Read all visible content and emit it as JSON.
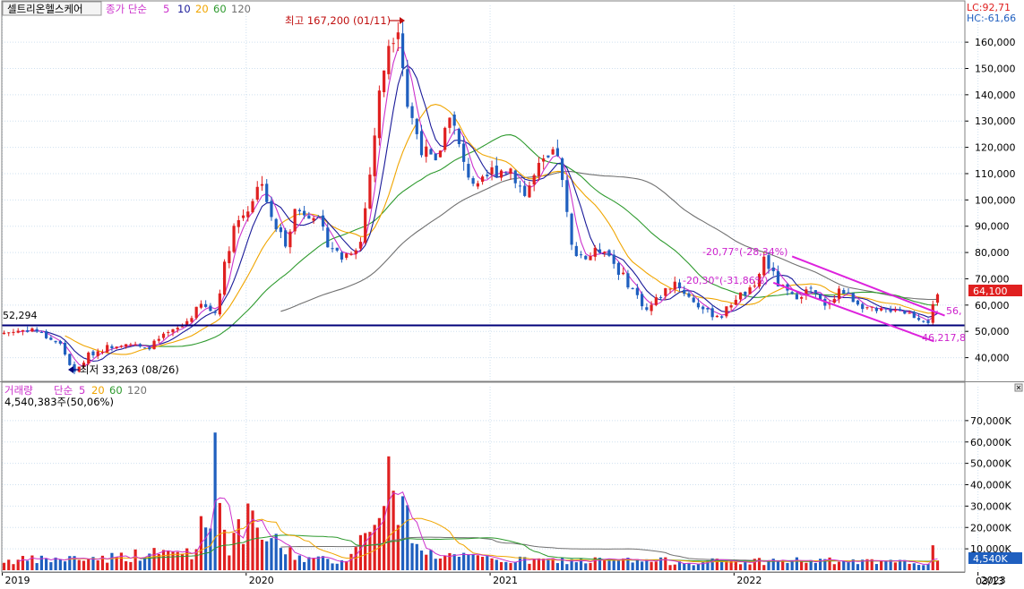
{
  "header": {
    "stock_name": "셀트리온헬스케어",
    "ma_label": "종가 단순",
    "ma_periods": [
      "5",
      "10",
      "20",
      "60",
      "120"
    ],
    "lc": "LC:92,71",
    "hc": "HC:-61,66"
  },
  "volume_header": {
    "title": "거래량",
    "ma_label": "단순",
    "ma_periods": [
      "5",
      "20",
      "60",
      "120"
    ],
    "last_volume": "4,540,383주(50,06%)"
  },
  "colors": {
    "ma5": "#cc33cc",
    "ma10": "#1a1a99",
    "ma20": "#f0a500",
    "ma60": "#2e9a2e",
    "ma120": "#707070",
    "up": "#e02020",
    "down": "#1f5fbf",
    "support": "#00007a",
    "channel": "#dd22dd",
    "price_badge": "#e02020",
    "volume_badge": "#1f5fbf"
  },
  "annotations": {
    "high": "최고 167,200 (01/11)",
    "low": "최저 33,263 (08/26)",
    "support_value": "52,294",
    "channel_upper_label": "-20,77°(-28,34%)",
    "channel_lower_label": "-20,30°(-31,86%)",
    "upper_end_value": "56,",
    "lower_end_value": "46,217,8",
    "current_price": "64,100",
    "current_volume": "4,540K",
    "last_date": "03/13"
  },
  "chart_data": {
    "type": "candlestick",
    "price_axis": {
      "ticks": [
        40000,
        50000,
        60000,
        70000,
        80000,
        90000,
        100000,
        110000,
        120000,
        130000,
        140000,
        150000,
        160000
      ],
      "tick_labels": [
        "40,000",
        "50,000",
        "60,000",
        "70,000",
        "80,000",
        "90,000",
        "100,000",
        "110,000",
        "120,000",
        "130,000",
        "140,000",
        "150,000",
        "160,000"
      ],
      "range": [
        31000,
        174000
      ]
    },
    "volume_axis": {
      "ticks": [
        10000,
        20000,
        30000,
        40000,
        50000,
        60000,
        70000
      ],
      "tick_labels": [
        "10,000K",
        "20,000K",
        "30,000K",
        "40,000K",
        "50,000K",
        "60,000K",
        "70,000K"
      ],
      "range": [
        0,
        80000
      ]
    },
    "x_axis": {
      "labels": [
        "2019",
        "2020",
        "2021",
        "2022",
        "2023"
      ],
      "label_weeks": [
        0,
        52,
        104,
        156,
        208
      ]
    },
    "price_keypoints": [
      [
        0,
        49500
      ],
      [
        6,
        51000
      ],
      [
        12,
        45000
      ],
      [
        15,
        34000
      ],
      [
        18,
        41000
      ],
      [
        22,
        44000
      ],
      [
        26,
        46000
      ],
      [
        30,
        43000
      ],
      [
        34,
        48000
      ],
      [
        38,
        52000
      ],
      [
        42,
        60000
      ],
      [
        45,
        57000
      ],
      [
        47,
        75000
      ],
      [
        49,
        90000
      ],
      [
        52,
        97000
      ],
      [
        55,
        108000
      ],
      [
        57,
        92000
      ],
      [
        60,
        84000
      ],
      [
        62,
        96000
      ],
      [
        66,
        95000
      ],
      [
        69,
        84000
      ],
      [
        72,
        78000
      ],
      [
        76,
        84000
      ],
      [
        78,
        110000
      ],
      [
        80,
        140000
      ],
      [
        82,
        160000
      ],
      [
        84,
        167200
      ],
      [
        86,
        136000
      ],
      [
        89,
        120000
      ],
      [
        92,
        113000
      ],
      [
        95,
        134000
      ],
      [
        98,
        113000
      ],
      [
        101,
        104000
      ],
      [
        104,
        111000
      ],
      [
        108,
        112000
      ],
      [
        111,
        102000
      ],
      [
        114,
        112000
      ],
      [
        118,
        118000
      ],
      [
        121,
        82000
      ],
      [
        124,
        78000
      ],
      [
        128,
        82000
      ],
      [
        131,
        73000
      ],
      [
        134,
        66000
      ],
      [
        137,
        58000
      ],
      [
        140,
        64000
      ],
      [
        143,
        69000
      ],
      [
        146,
        63000
      ],
      [
        150,
        57000
      ],
      [
        153,
        56000
      ],
      [
        156,
        63000
      ],
      [
        160,
        66000
      ],
      [
        162,
        78000
      ],
      [
        165,
        68000
      ],
      [
        168,
        63000
      ],
      [
        172,
        66000
      ],
      [
        175,
        59000
      ],
      [
        178,
        66000
      ],
      [
        182,
        61000
      ],
      [
        186,
        57000
      ],
      [
        190,
        59000
      ],
      [
        194,
        56000
      ],
      [
        197,
        54000
      ],
      [
        199,
        64100
      ]
    ],
    "volume_keypoints": [
      [
        0,
        4500
      ],
      [
        10,
        5000
      ],
      [
        22,
        6000
      ],
      [
        40,
        9000
      ],
      [
        44,
        28000
      ],
      [
        45,
        76000
      ],
      [
        46,
        30000
      ],
      [
        48,
        12000
      ],
      [
        52,
        22000
      ],
      [
        56,
        15000
      ],
      [
        62,
        7000
      ],
      [
        66,
        5000
      ],
      [
        72,
        4500
      ],
      [
        78,
        18000
      ],
      [
        80,
        40000
      ],
      [
        81,
        25000
      ],
      [
        82,
        51000
      ],
      [
        83,
        30000
      ],
      [
        86,
        24000
      ],
      [
        90,
        8000
      ],
      [
        100,
        5500
      ],
      [
        110,
        4500
      ],
      [
        120,
        4500
      ],
      [
        130,
        4500
      ],
      [
        150,
        4000
      ],
      [
        170,
        4500
      ],
      [
        190,
        3500
      ],
      [
        197,
        4000
      ],
      [
        198,
        9000
      ],
      [
        199,
        4540
      ]
    ],
    "moving_averages": [
      "5",
      "10",
      "20",
      "60",
      "120"
    ],
    "support_level": 52294,
    "high": {
      "value": 167200,
      "date": "01/11"
    },
    "low": {
      "value": 33263,
      "date": "08/26"
    },
    "channel": {
      "upper": {
        "start": 78500,
        "end": 56000,
        "angle": "-20,77°",
        "change": "-28,34%"
      },
      "lower": {
        "start": 68500,
        "end": 46217.8,
        "angle": "-20,30°",
        "change": "-31,86%"
      }
    },
    "current_price": 64100,
    "current_volume": 4540383
  }
}
